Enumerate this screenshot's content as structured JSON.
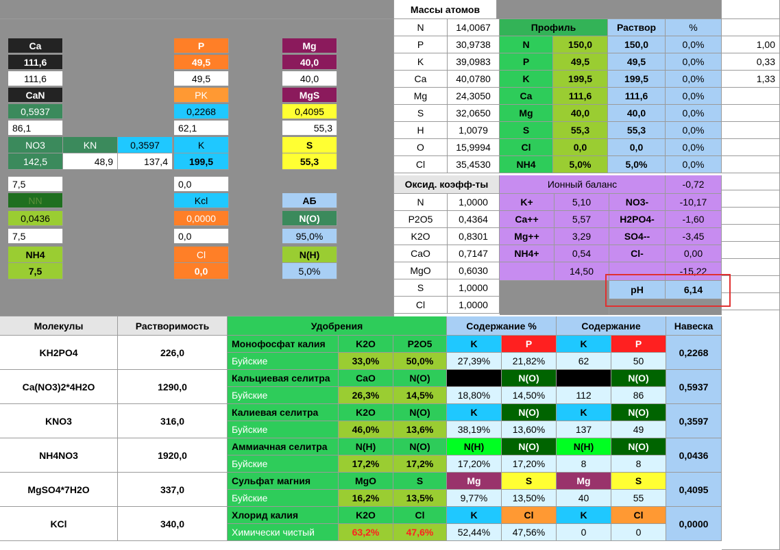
{
  "left": {
    "ca": {
      "label": "Ca",
      "v1": "111,6",
      "v2": "111,6"
    },
    "can": {
      "label": "CaN",
      "v1": "0,5937",
      "v2": "86,1"
    },
    "no3": {
      "label": "NO3",
      "v1": "142,5"
    },
    "kn": {
      "label": "KN",
      "v1": "48,9"
    },
    "kn_val": {
      "v0": "0,3597",
      "v1": "137,4"
    },
    "k": {
      "label": "K",
      "v1": "199,5"
    },
    "p": {
      "label": "P",
      "v1": "49,5",
      "v2": "49,5"
    },
    "pk": {
      "label": "PK",
      "v1": "0,2268",
      "v2": "62,1"
    },
    "mg": {
      "label": "Mg",
      "v1": "40,0",
      "v2": "40,0"
    },
    "mgs": {
      "label": "MgS",
      "v1": "0,4095",
      "v2": "55,3"
    },
    "s": {
      "label": "S",
      "v1": "55,3"
    },
    "row_75": "7,5",
    "row_00": "0,0",
    "nn": {
      "label": "NN",
      "v1": "0,0436",
      "v2": "7,5"
    },
    "kcl": {
      "label": "Kcl",
      "v1": "0,0000",
      "v2": "0,0"
    },
    "ab": {
      "label": "АБ",
      "v1": "N(O)",
      "v2": "95,0%",
      "v3": "N(H)",
      "v4": "5,0%"
    },
    "nh4": {
      "label": "NH4",
      "v1": "7,5"
    },
    "cl": {
      "label": "Cl",
      "v1": "0,0"
    }
  },
  "masses": {
    "title": "Массы атомов",
    "rows": [
      {
        "el": "N",
        "val": "14,0067"
      },
      {
        "el": "P",
        "val": "30,9738"
      },
      {
        "el": "K",
        "val": "39,0983"
      },
      {
        "el": "Ca",
        "val": "40,0780"
      },
      {
        "el": "Mg",
        "val": "24,3050"
      },
      {
        "el": "S",
        "val": "32,0650"
      },
      {
        "el": "H",
        "val": "1,0079"
      },
      {
        "el": "O",
        "val": "15,9994"
      },
      {
        "el": "Cl",
        "val": "35,4530"
      }
    ]
  },
  "profile": {
    "h_profile": "Профиль",
    "h_solution": "Раствор",
    "h_pct": "%",
    "rows": [
      {
        "el": "N",
        "p": "150,0",
        "s": "150,0",
        "pct": "0,0%"
      },
      {
        "el": "P",
        "p": "49,5",
        "s": "49,5",
        "pct": "0,0%"
      },
      {
        "el": "K",
        "p": "199,5",
        "s": "199,5",
        "pct": "0,0%"
      },
      {
        "el": "Ca",
        "p": "111,6",
        "s": "111,6",
        "pct": "0,0%"
      },
      {
        "el": "Mg",
        "p": "40,0",
        "s": "40,0",
        "pct": "0,0%"
      },
      {
        "el": "S",
        "p": "55,3",
        "s": "55,3",
        "pct": "0,0%"
      },
      {
        "el": "Cl",
        "p": "0,0",
        "s": "0,0",
        "pct": "0,0%"
      },
      {
        "el": "NH4",
        "p": "5,0%",
        "s": "5,0%",
        "pct": "0,0%"
      }
    ],
    "side": [
      "1,00",
      "0,33",
      "1,33"
    ]
  },
  "oxid": {
    "title": "Оксид. коэфф-ты",
    "rows": [
      {
        "el": "N",
        "val": "1,0000"
      },
      {
        "el": "P2O5",
        "val": "0,4364"
      },
      {
        "el": "K2O",
        "val": "0,8301"
      },
      {
        "el": "CaO",
        "val": "0,7147"
      },
      {
        "el": "MgO",
        "val": "0,6030"
      },
      {
        "el": "S",
        "val": "1,0000"
      },
      {
        "el": "Cl",
        "val": "1,0000"
      }
    ]
  },
  "ionic": {
    "title": "Ионный баланс",
    "total": "-0,72",
    "rows": [
      {
        "c": "K+",
        "cv": "5,10",
        "a": "NO3-",
        "av": "-10,17"
      },
      {
        "c": "Ca++",
        "cv": "5,57",
        "a": "H2PO4-",
        "av": "-1,60"
      },
      {
        "c": "Mg++",
        "cv": "3,29",
        "a": "SO4--",
        "av": "-3,45"
      },
      {
        "c": "NH4+",
        "cv": "0,54",
        "a": "Cl-",
        "av": "0,00"
      }
    ],
    "sum_c": "14,50",
    "sum_a": "-15,22",
    "ph_label": "pH",
    "ph_value": "6,14"
  },
  "bottom": {
    "h_molecules": "Молекулы",
    "h_solubility": "Растворимость",
    "h_fert": "Удобрения",
    "h_content_pct": "Содержание %",
    "h_content": "Содержание",
    "h_weight": "Навеска",
    "rows": [
      {
        "mol": "KH2PO4",
        "sol": "226,0",
        "name": "Монофосфат калия",
        "maker": "Буйские",
        "o1": "K2O",
        "o2": "P2O5",
        "p1": "33,0%",
        "p2": "50,0%",
        "e1": "K",
        "e2": "P",
        "c1": "27,39%",
        "c2": "21,82%",
        "f1": "K",
        "f2": "P",
        "m1": "62",
        "m2": "50",
        "w": "0,2268"
      },
      {
        "mol": "Ca(NO3)2*4H2O",
        "sol": "1290,0",
        "name": "Кальциевая селитра",
        "maker": "Буйские",
        "o1": "CaO",
        "o2": "N(O)",
        "p1": "26,3%",
        "p2": "14,5%",
        "e1": "",
        "e2": "N(O)",
        "c1": "18,80%",
        "c2": "14,50%",
        "f1": "",
        "f2": "N(O)",
        "m1": "112",
        "m2": "86",
        "w": "0,5937"
      },
      {
        "mol": "KNO3",
        "sol": "316,0",
        "name": "Калиевая селитра",
        "maker": "Буйские",
        "o1": "K2O",
        "o2": "N(O)",
        "p1": "46,0%",
        "p2": "13,6%",
        "e1": "K",
        "e2": "N(O)",
        "c1": "38,19%",
        "c2": "13,60%",
        "f1": "K",
        "f2": "N(O)",
        "m1": "137",
        "m2": "49",
        "w": "0,3597"
      },
      {
        "mol": "NH4NO3",
        "sol": "1920,0",
        "name": "Аммиачная селитра",
        "maker": "Буйские",
        "o1": "N(H)",
        "o2": "N(O)",
        "p1": "17,2%",
        "p2": "17,2%",
        "e1": "N(H)",
        "e2": "N(O)",
        "c1": "17,20%",
        "c2": "17,20%",
        "f1": "N(H)",
        "f2": "N(O)",
        "m1": "8",
        "m2": "8",
        "w": "0,0436"
      },
      {
        "mol": "MgSO4*7H2O",
        "sol": "337,0",
        "name": "Сульфат магния",
        "maker": "Буйские",
        "o1": "MgO",
        "o2": "S",
        "p1": "16,2%",
        "p2": "13,5%",
        "e1": "Mg",
        "e2": "S",
        "c1": "9,77%",
        "c2": "13,50%",
        "f1": "Mg",
        "f2": "S",
        "m1": "40",
        "m2": "55",
        "w": "0,4095"
      },
      {
        "mol": "KCl",
        "sol": "340,0",
        "name": "Хлорид калия",
        "maker": "Химически чистый",
        "o1": "K2O",
        "o2": "Cl",
        "p1": "63,2%",
        "p2": "47,6%",
        "e1": "K",
        "e2": "Cl",
        "c1": "52,44%",
        "c2": "47,56%",
        "f1": "K",
        "f2": "Cl",
        "m1": "0",
        "m2": "0",
        "w": "0,0000"
      }
    ]
  }
}
